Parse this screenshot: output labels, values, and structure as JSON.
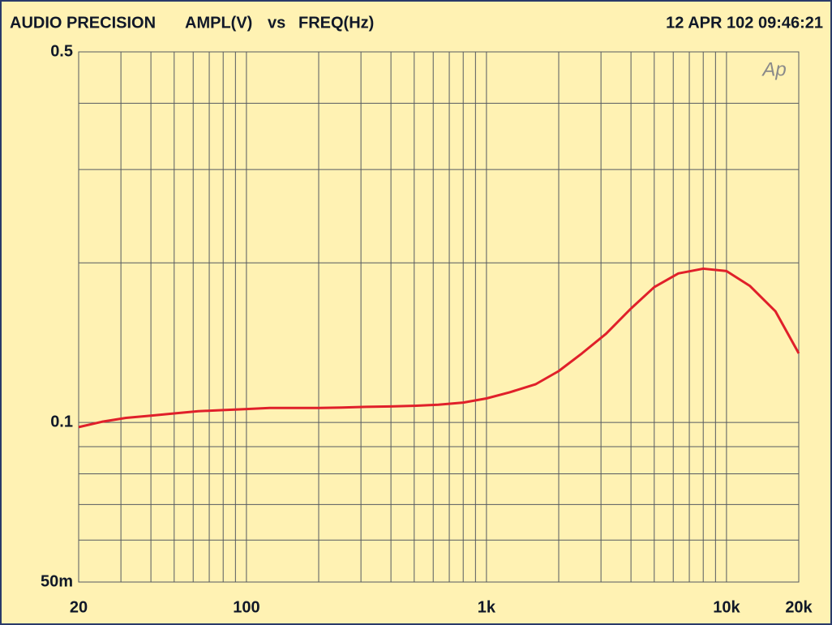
{
  "chart_data": {
    "type": "line",
    "title": "AUDIO PRECISION",
    "y_label": "AMPL(V)",
    "connector": "vs",
    "x_label": "FREQ(Hz)",
    "timestamp": "12 APR 102 09:46:21",
    "logo": "Ap",
    "x_log": true,
    "y_log": true,
    "grid": true,
    "xlim": [
      20,
      20000
    ],
    "ylim": [
      0.05,
      0.5
    ],
    "xticks": [
      20,
      100,
      {
        "value": 1000,
        "label": "1k"
      },
      {
        "value": 10000,
        "label": "10k"
      },
      {
        "value": 20000,
        "label": "20k"
      }
    ],
    "yticks": [
      {
        "value": 0.05,
        "label": "50m"
      },
      0.1,
      0.5
    ],
    "x_minor_ticks": [
      30,
      40,
      50,
      60,
      70,
      80,
      90,
      200,
      300,
      400,
      500,
      600,
      700,
      800,
      900,
      2000,
      3000,
      4000,
      5000,
      6000,
      7000,
      8000,
      9000
    ],
    "y_minor_ticks": [
      0.06,
      0.07,
      0.08,
      0.09,
      0.2,
      0.3,
      0.4
    ],
    "x": [
      20,
      25,
      31.5,
      40,
      50,
      63,
      80,
      100,
      125,
      160,
      200,
      250,
      315,
      400,
      500,
      630,
      800,
      1000,
      1250,
      1600,
      2000,
      2500,
      3150,
      4000,
      5000,
      6300,
      8000,
      10000,
      12500,
      16000,
      20000
    ],
    "series": [
      {
        "name": "AMPL",
        "color": "#e0202a",
        "values": [
          0.098,
          0.1003,
          0.102,
          0.103,
          0.104,
          0.105,
          0.1055,
          0.106,
          0.1065,
          0.1065,
          0.1065,
          0.1067,
          0.107,
          0.1072,
          0.1075,
          0.108,
          0.109,
          0.111,
          0.114,
          0.118,
          0.125,
          0.135,
          0.147,
          0.164,
          0.18,
          0.191,
          0.195,
          0.193,
          0.181,
          0.162,
          0.135
        ]
      }
    ]
  }
}
